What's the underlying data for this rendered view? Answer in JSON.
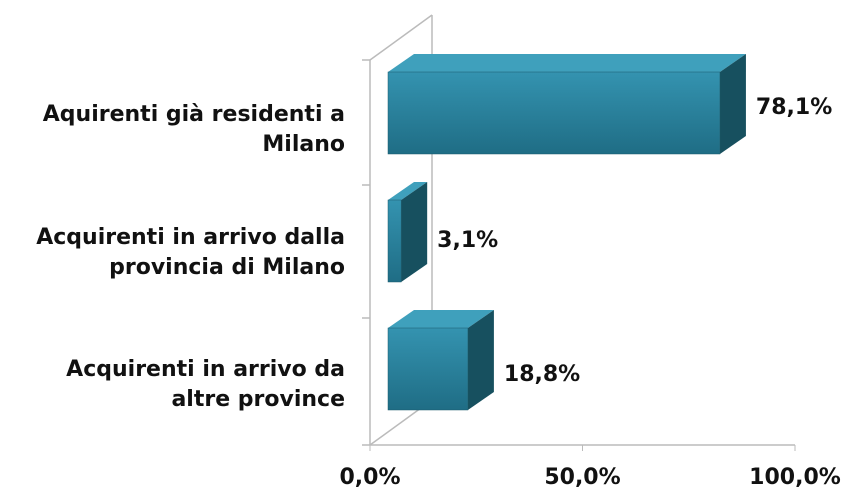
{
  "chart_data": {
    "type": "bar",
    "orientation": "horizontal",
    "categories": [
      "Aquirenti già residenti a Milano",
      "Acquirenti in arrivo dalla provincia di Milano",
      "Acquirenti in arrivo da altre province"
    ],
    "values": [
      78.1,
      3.1,
      18.8
    ],
    "value_labels": [
      "78,1%",
      "3,1%",
      "18,8%"
    ],
    "color": "#2a7f9a",
    "xlim": [
      0,
      100
    ],
    "xticks": [
      {
        "value": 0,
        "label": "0,0%"
      },
      {
        "value": 50,
        "label": "50,0%"
      },
      {
        "value": 100,
        "label": "100,0%"
      }
    ]
  }
}
